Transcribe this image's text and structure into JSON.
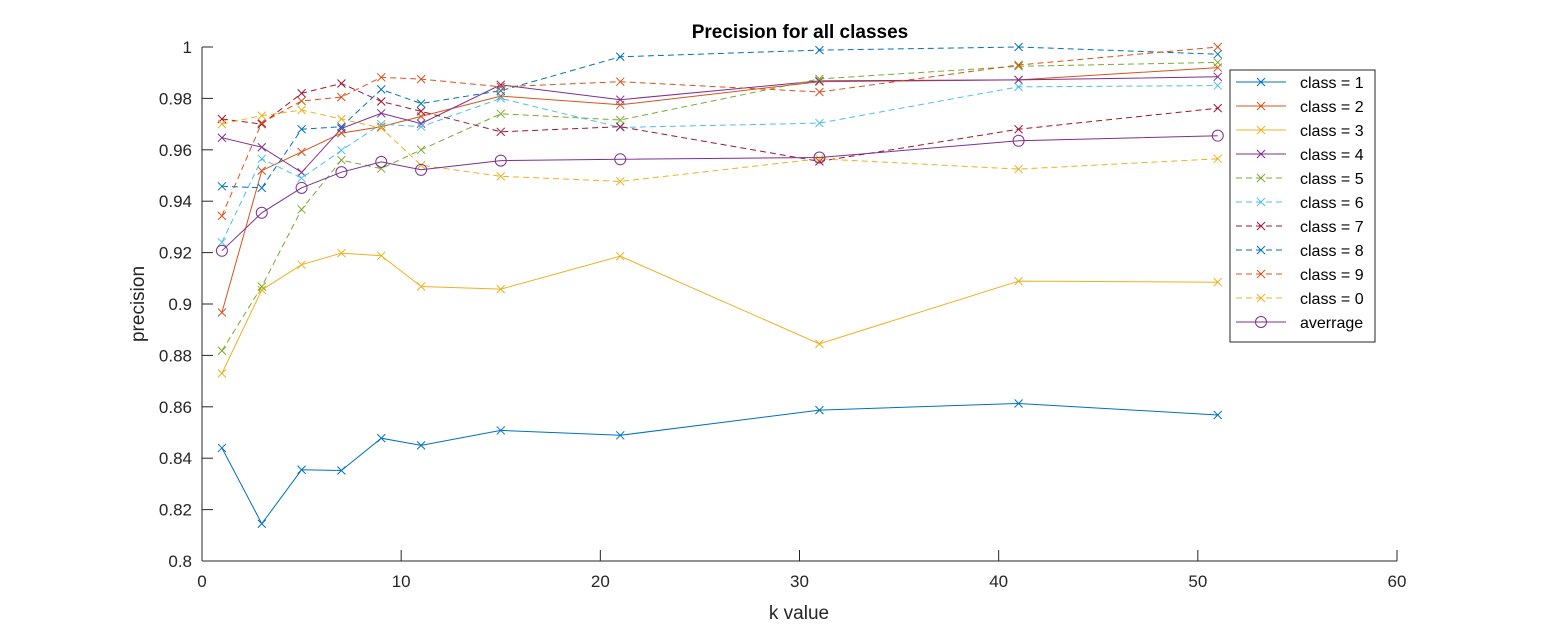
{
  "chart_data": {
    "type": "line",
    "title": "Precision for all classes",
    "xlabel": "k value",
    "ylabel": "precision",
    "xlim": [
      0,
      60
    ],
    "ylim": [
      0.8,
      1
    ],
    "xticks": [
      0,
      10,
      20,
      30,
      40,
      50,
      60
    ],
    "yticks": [
      0.8,
      0.82,
      0.84,
      0.86,
      0.88,
      0.9,
      0.92,
      0.94,
      0.96,
      0.98,
      1
    ],
    "grid": false,
    "legend_position": "right",
    "x": [
      1,
      3,
      5,
      7,
      9,
      11,
      15,
      21,
      31,
      41,
      51
    ],
    "series": [
      {
        "name": "class = 1",
        "color": "#0072BD",
        "dash": "solid",
        "marker": "x",
        "values": [
          0.844,
          0.8145,
          0.8355,
          0.8352,
          0.8478,
          0.845,
          0.8508,
          0.8489,
          0.8587,
          0.8613,
          0.8568
        ]
      },
      {
        "name": "class = 2",
        "color": "#D95319",
        "dash": "solid",
        "marker": "x",
        "values": [
          0.8967,
          0.9519,
          0.9592,
          0.9665,
          0.969,
          0.973,
          0.9809,
          0.9775,
          0.9865,
          0.9872,
          0.992
        ]
      },
      {
        "name": "class = 3",
        "color": "#EDB120",
        "dash": "solid",
        "marker": "x",
        "values": [
          0.873,
          0.9055,
          0.9153,
          0.9198,
          0.9188,
          0.9068,
          0.9058,
          0.9186,
          0.8845,
          0.9089,
          0.9085
        ]
      },
      {
        "name": "class = 4",
        "color": "#7E2F8E",
        "dash": "solid",
        "marker": "x",
        "values": [
          0.9647,
          0.961,
          0.9512,
          0.9683,
          0.9742,
          0.9702,
          0.9853,
          0.9795,
          0.9868,
          0.9872,
          0.9884
        ]
      },
      {
        "name": "class = 5",
        "color": "#77AC30",
        "dash": "dashed",
        "marker": "x",
        "values": [
          0.8818,
          0.9068,
          0.9368,
          0.956,
          0.9527,
          0.96,
          0.974,
          0.9716,
          0.9876,
          0.9925,
          0.994
        ]
      },
      {
        "name": "class = 6",
        "color": "#4DBEEE",
        "dash": "dashed",
        "marker": "x",
        "values": [
          0.924,
          0.9565,
          0.949,
          0.9598,
          0.97,
          0.969,
          0.98,
          0.9687,
          0.9704,
          0.9845,
          0.985
        ]
      },
      {
        "name": "class = 7",
        "color": "#A2142F",
        "dash": "dashed",
        "marker": "x",
        "values": [
          0.972,
          0.97,
          0.982,
          0.9858,
          0.9788,
          0.975,
          0.967,
          0.969,
          0.9555,
          0.968,
          0.9762
        ]
      },
      {
        "name": "class = 8",
        "color": "#0072BD",
        "dash": "dashed",
        "marker": "x",
        "values": [
          0.9458,
          0.9452,
          0.968,
          0.969,
          0.9835,
          0.978,
          0.983,
          0.9962,
          0.9988,
          1.0,
          0.9972
        ]
      },
      {
        "name": "class = 9",
        "color": "#D95319",
        "dash": "dashed",
        "marker": "x",
        "values": [
          0.9343,
          0.9705,
          0.979,
          0.9805,
          0.9882,
          0.9875,
          0.9845,
          0.9865,
          0.9825,
          0.993,
          1.0
        ]
      },
      {
        "name": "class = 0",
        "color": "#EDB120",
        "dash": "dashed",
        "marker": "x",
        "values": [
          0.97,
          0.9733,
          0.9755,
          0.972,
          0.9685,
          0.954,
          0.9497,
          0.9477,
          0.9565,
          0.9525,
          0.9565
        ]
      },
      {
        "name": "averrage",
        "color": "#7E2F8E",
        "dash": "solid",
        "marker": "circle",
        "values": [
          0.9207,
          0.9355,
          0.9452,
          0.9513,
          0.9553,
          0.9522,
          0.9558,
          0.9563,
          0.957,
          0.9635,
          0.9655
        ]
      }
    ]
  }
}
